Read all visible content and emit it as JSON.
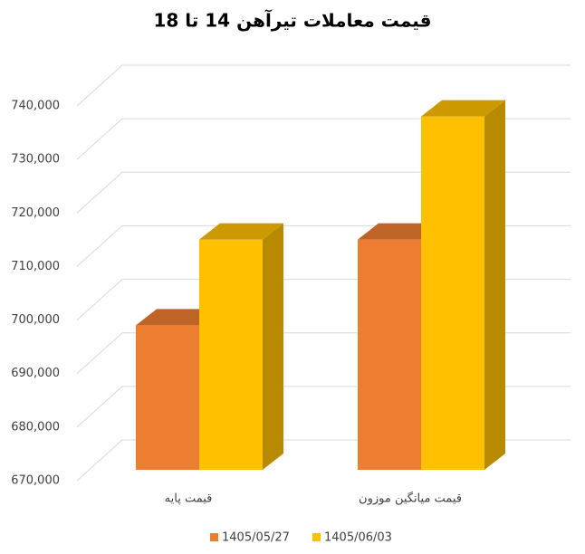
{
  "chart_data": {
    "type": "bar3d",
    "title": "قیمت معاملات تیرآهن 14 تا 18",
    "categories": [
      "قیمت پایه",
      "قیمت میانگین موزون"
    ],
    "series": [
      {
        "name": "1405/05/27",
        "color": "#ED7D31",
        "values": [
          697000,
          713000
        ]
      },
      {
        "name": "1405/06/03",
        "color": "#FFC000",
        "values": [
          713000,
          736000
        ]
      }
    ],
    "ylim": [
      670000,
      740000
    ],
    "yticks": [
      {
        "value": 670000,
        "label": "670,000"
      },
      {
        "value": 680000,
        "label": "680,000"
      },
      {
        "value": 690000,
        "label": "690,000"
      },
      {
        "value": 700000,
        "label": "700,000"
      },
      {
        "value": 710000,
        "label": "710,000"
      },
      {
        "value": 720000,
        "label": "720,000"
      },
      {
        "value": 730000,
        "label": "730,000"
      },
      {
        "value": 740000,
        "label": "740,000"
      }
    ],
    "grid": true,
    "legend": "bottom"
  }
}
